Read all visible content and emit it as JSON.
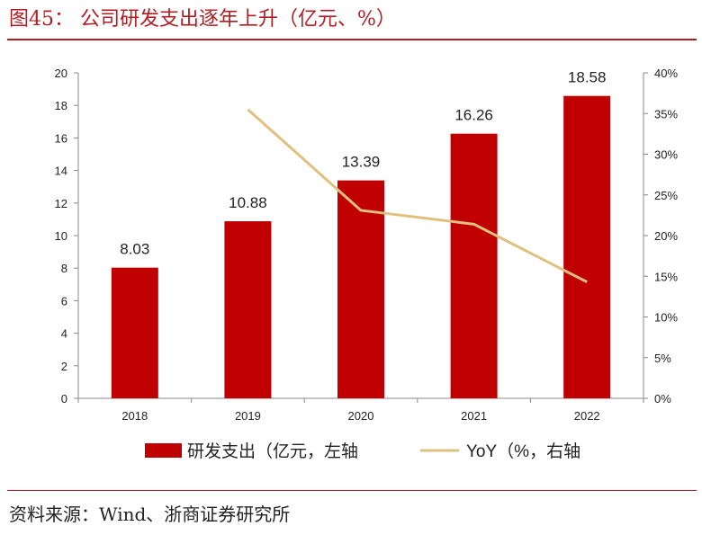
{
  "figure": {
    "title": "图45：  公司研发支出逐年上升（亿元、%）",
    "source": "资料来源：Wind、浙商证券研究所"
  },
  "colors": {
    "bar": "#c00000",
    "line": "#e0c07e",
    "title_red": "#b01e23",
    "axis": "#888888",
    "text": "#222222"
  },
  "chart_data": {
    "type": "bar",
    "categories": [
      "2018",
      "2019",
      "2020",
      "2021",
      "2022"
    ],
    "series": [
      {
        "name": "研发支出（亿元，左轴",
        "type": "bar",
        "axis": "left",
        "values": [
          8.03,
          10.88,
          13.39,
          16.26,
          18.58
        ],
        "labels": [
          "8.03",
          "10.88",
          "13.39",
          "16.26",
          "18.58"
        ]
      },
      {
        "name": "YoY（%，右轴",
        "type": "line",
        "axis": "right",
        "values": [
          null,
          35.5,
          23.1,
          21.4,
          14.3
        ]
      }
    ],
    "y_left": {
      "min": 0,
      "max": 20,
      "ticks": [
        "0",
        "2",
        "4",
        "6",
        "8",
        "10",
        "12",
        "14",
        "16",
        "18",
        "20"
      ]
    },
    "y_right": {
      "min": 0,
      "max": 40,
      "ticks": [
        "0%",
        "5%",
        "10%",
        "15%",
        "20%",
        "25%",
        "30%",
        "35%",
        "40%"
      ]
    },
    "legend": "bottom",
    "grid": false
  }
}
